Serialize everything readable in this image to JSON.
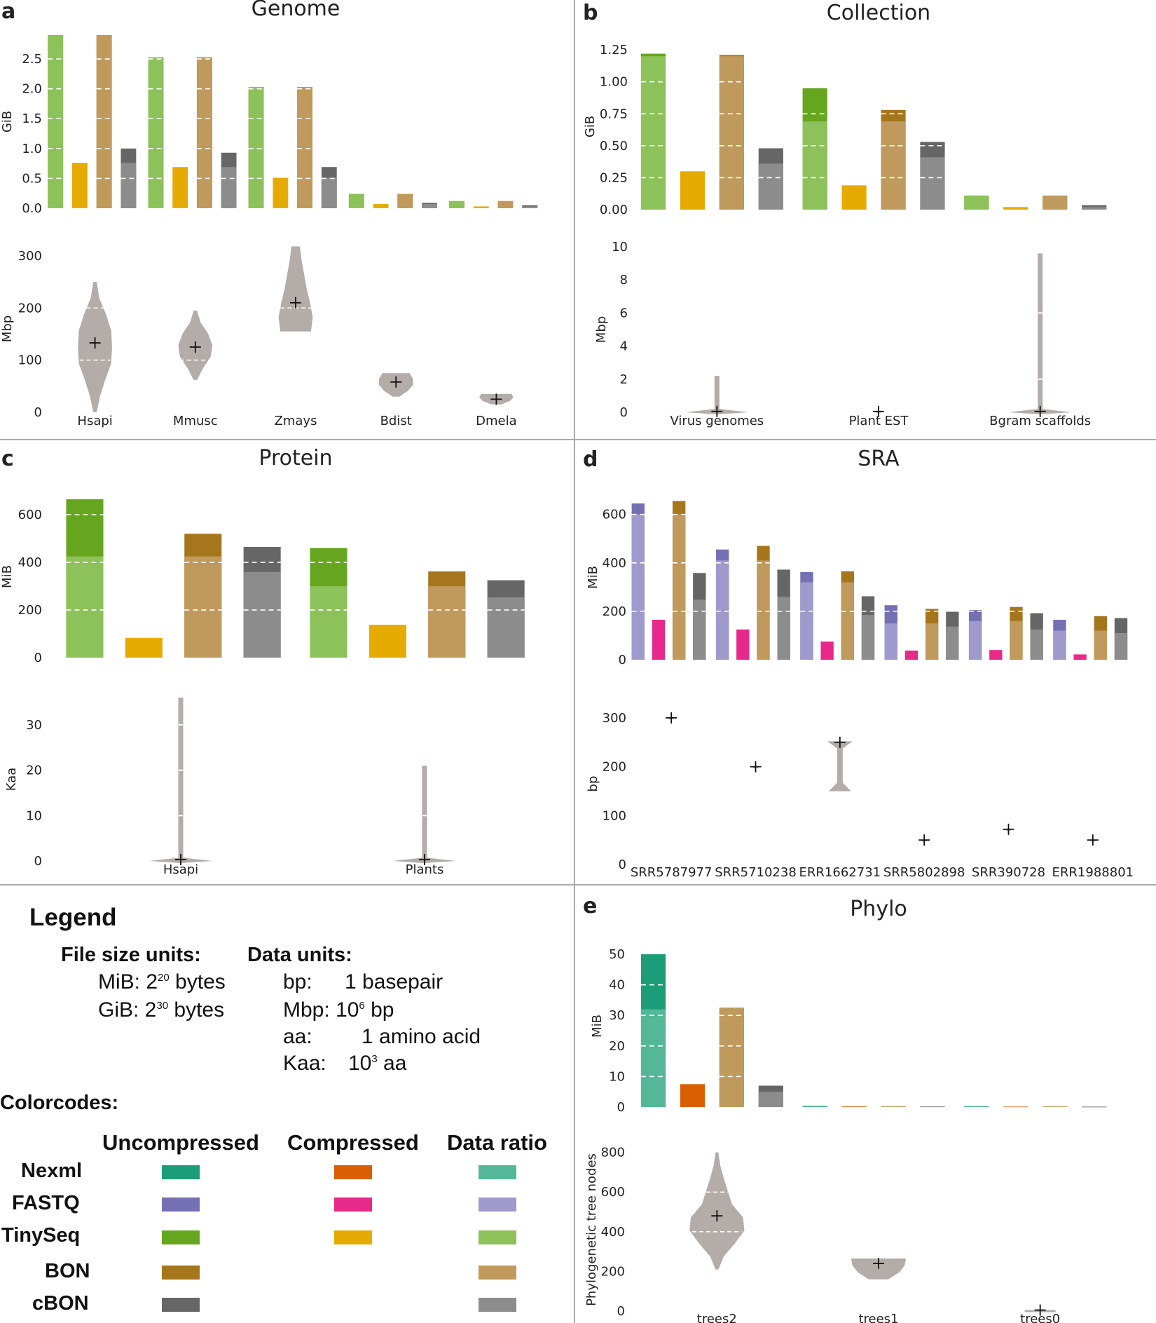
{
  "palette": {
    "uncompressed": {
      "Nexml": "#1b9e77",
      "FASTQ": "#7570b3",
      "TinySeq": "#66a61e",
      "BON": "#a6761d",
      "cBON": "#666666"
    },
    "compressed": {
      "Nexml": "#d95f02",
      "FASTQ": "#e7298a",
      "TinySeq": "#e6ab02"
    },
    "ratio": {
      "Nexml": "#54b898",
      "FASTQ": "#9e9acb",
      "TinySeq": "#8dc15a",
      "BON": "#bf9a5c",
      "cBON": "#8c8c8c"
    },
    "violin": "#b3aca9",
    "grid": "#ffffff",
    "divider": "#aaaaaa"
  },
  "chart_data": [
    {
      "panel": "a",
      "type": "bar",
      "title": "Genome",
      "categories": [
        "Hsapi",
        "Mmusc",
        "Zmays",
        "Bdist",
        "Dmela"
      ],
      "ylabel": "GiB",
      "ylim": [
        0,
        2.9
      ],
      "yticks": [
        0.0,
        0.5,
        1.0,
        1.5,
        2.0,
        2.5
      ],
      "yticklabels": [
        "0.0",
        "0.5",
        "1.0",
        "1.5",
        "2.0",
        "2.5"
      ],
      "bars": [
        {
          "format": "TinySeq",
          "kind": "uncompressed",
          "values": [
            2.9,
            2.53,
            2.03,
            0.24,
            0.12
          ],
          "ratio": [
            2.9,
            2.53,
            2.03,
            0.24,
            0.12
          ]
        },
        {
          "format": "TinySeq",
          "kind": "compressed",
          "values": [
            0.76,
            0.69,
            0.51,
            0.07,
            0.03
          ]
        },
        {
          "format": "BON",
          "kind": "uncompressed",
          "values": [
            2.9,
            2.53,
            2.03,
            0.24,
            0.12
          ],
          "ratio": [
            2.9,
            2.53,
            2.03,
            0.24,
            0.12
          ]
        },
        {
          "format": "cBON",
          "kind": "uncompressed",
          "values": [
            1.0,
            0.93,
            0.69,
            0.09,
            0.05
          ],
          "ratio": [
            0.76,
            0.69,
            0.51,
            0.07,
            0.03
          ]
        }
      ]
    },
    {
      "panel": "a",
      "type": "violin",
      "categories": [
        "Hsapi",
        "Mmusc",
        "Zmays",
        "Bdist",
        "Dmela"
      ],
      "ylabel": "Mbp",
      "ylim": [
        0,
        320
      ],
      "yticks": [
        0,
        100,
        200,
        300
      ],
      "yticklabels": [
        "0",
        "100",
        "200",
        "300"
      ],
      "violins": [
        {
          "min": 0,
          "max": 250,
          "mean": 133,
          "q1": 100,
          "q3": 200,
          "shape": [
            0.1,
            0.3,
            0.6,
            0.95,
            1.0,
            0.95,
            0.65,
            0.25,
            0.1
          ]
        },
        {
          "min": 62,
          "max": 195,
          "mean": 125,
          "q1": 100,
          "q3": null,
          "shape": [
            0.1,
            0.45,
            0.9,
            1.0,
            0.75,
            0.3,
            0.1
          ]
        },
        {
          "min": 155,
          "max": 318,
          "mean": 210,
          "q1": 200,
          "q3": null,
          "shape": [
            0.9,
            1.0,
            0.85,
            0.65,
            0.5,
            0.35,
            0.25
          ]
        },
        {
          "min": 30,
          "max": 75,
          "mean": 58,
          "q1": null,
          "q3": null,
          "shape": [
            0.2,
            0.7,
            1.0,
            1.0,
            0.8
          ]
        },
        {
          "min": 15,
          "max": 35,
          "mean": 25,
          "q1": null,
          "q3": null,
          "shape": [
            0.3,
            0.8,
            1.0,
            0.9
          ]
        }
      ]
    },
    {
      "panel": "b",
      "type": "bar",
      "title": "Collection",
      "categories": [
        "Virus genomes",
        "Plant EST",
        "Bgram scaffolds"
      ],
      "ylabel": "GiB",
      "ylim": [
        0,
        1.3
      ],
      "yticks": [
        0.0,
        0.25,
        0.5,
        0.75,
        1.0,
        1.25
      ],
      "yticklabels": [
        "0.00",
        "0.25",
        "0.50",
        "0.75",
        "1.00",
        "1.25"
      ],
      "bars": [
        {
          "format": "TinySeq",
          "kind": "uncompressed",
          "values": [
            1.22,
            0.95,
            0.11
          ],
          "ratio": [
            1.2,
            0.69,
            0.11
          ]
        },
        {
          "format": "TinySeq",
          "kind": "compressed",
          "values": [
            0.3,
            0.19,
            0.02
          ]
        },
        {
          "format": "BON",
          "kind": "uncompressed",
          "values": [
            1.21,
            0.78,
            0.11
          ],
          "ratio": [
            1.2,
            0.69,
            0.11
          ]
        },
        {
          "format": "cBON",
          "kind": "uncompressed",
          "values": [
            0.48,
            0.53,
            0.035
          ],
          "ratio": [
            0.36,
            0.41,
            0.02
          ]
        }
      ]
    },
    {
      "panel": "b",
      "type": "violin",
      "categories": [
        "Virus genomes",
        "Plant EST",
        "Bgram scaffolds"
      ],
      "ylabel": "Mbp",
      "ylim": [
        0,
        10
      ],
      "yticks": [
        0,
        2,
        4,
        6,
        8,
        10
      ],
      "yticklabels": [
        "0",
        "2",
        "4",
        "6",
        "8",
        "10"
      ],
      "violins": [
        {
          "min": 0,
          "max": 2.2,
          "mean": 0.05,
          "thin": true
        },
        {
          "min": 0,
          "max": 0.05,
          "mean": 0.05,
          "thin": true
        },
        {
          "min": 0,
          "max": 9.6,
          "mean": 0.05,
          "thin": true,
          "q1": 2,
          "q3": 6
        }
      ]
    },
    {
      "panel": "c",
      "type": "bar",
      "title": "Protein",
      "categories": [
        "Hsapi",
        "Plants"
      ],
      "ylabel": "MiB",
      "ylim": [
        0,
        680
      ],
      "yticks": [
        0,
        200,
        400,
        600
      ],
      "yticklabels": [
        "0",
        "200",
        "400",
        "600"
      ],
      "bars": [
        {
          "format": "TinySeq",
          "kind": "uncompressed",
          "values": [
            665,
            460
          ],
          "ratio": [
            425,
            300
          ]
        },
        {
          "format": "TinySeq",
          "kind": "compressed",
          "values": [
            83,
            138
          ]
        },
        {
          "format": "BON",
          "kind": "uncompressed",
          "values": [
            520,
            362
          ],
          "ratio": [
            425,
            300
          ]
        },
        {
          "format": "cBON",
          "kind": "uncompressed",
          "values": [
            465,
            325
          ],
          "ratio": [
            360,
            253
          ]
        }
      ]
    },
    {
      "panel": "c",
      "type": "violin",
      "categories": [
        "Hsapi",
        "Plants"
      ],
      "ylabel": "Kaa",
      "ylim": [
        0,
        36
      ],
      "yticks": [
        0,
        10,
        20,
        30
      ],
      "yticklabels": [
        "0",
        "10",
        "20",
        "30"
      ],
      "violins": [
        {
          "min": 0,
          "max": 36,
          "mean": 0.3,
          "thin": true,
          "q1": 10,
          "q3": 20,
          "extra": 30
        },
        {
          "min": 0,
          "max": 21,
          "mean": 0.3,
          "thin": true,
          "q1": 10
        }
      ]
    },
    {
      "panel": "d",
      "type": "bar",
      "title": "SRA",
      "categories": [
        "SRR5787977",
        "SRR5710238",
        "ERR1662731",
        "SRR5802898",
        "SRR390728",
        "ERR1988801"
      ],
      "ylabel": "MiB",
      "ylim": [
        0,
        680
      ],
      "yticks": [
        0,
        200,
        400,
        600
      ],
      "yticklabels": [
        "0",
        "200",
        "400",
        "600"
      ],
      "bars": [
        {
          "format": "FASTQ",
          "kind": "uncompressed",
          "values": [
            645,
            455,
            362,
            225,
            205,
            165
          ],
          "ratio": [
            600,
            410,
            320,
            150,
            160,
            120
          ]
        },
        {
          "format": "FASTQ",
          "kind": "compressed",
          "values": [
            165,
            125,
            75,
            38,
            40,
            22
          ]
        },
        {
          "format": "BON",
          "kind": "uncompressed",
          "values": [
            655,
            470,
            365,
            210,
            218,
            180
          ],
          "ratio": [
            600,
            410,
            320,
            150,
            160,
            120
          ]
        },
        {
          "format": "cBON",
          "kind": "uncompressed",
          "values": [
            358,
            372,
            262,
            198,
            192,
            172
          ],
          "ratio": [
            248,
            260,
            185,
            137,
            125,
            110
          ]
        }
      ]
    },
    {
      "panel": "d",
      "type": "violin",
      "categories": [
        "SRR5787977",
        "SRR5710238",
        "ERR1662731",
        "SRR5802898",
        "SRR390728",
        "ERR1988801"
      ],
      "ylabel": "bp",
      "ylim": [
        0,
        330
      ],
      "yticks": [
        0,
        100,
        200,
        300
      ],
      "yticklabels": [
        "0",
        "100",
        "200",
        "300"
      ],
      "violins": [
        {
          "min": 300,
          "max": 300,
          "mean": 300,
          "thin": true
        },
        {
          "min": 200,
          "max": 200,
          "mean": 200,
          "thin": true
        },
        {
          "min": 150,
          "max": 252,
          "mean": 250,
          "thin": true,
          "taper": true
        },
        {
          "min": 50,
          "max": 50,
          "mean": 50,
          "thin": true
        },
        {
          "min": 72,
          "max": 72,
          "mean": 72,
          "thin": true
        },
        {
          "min": 50,
          "max": 50,
          "mean": 50,
          "thin": true
        }
      ]
    },
    {
      "panel": "e",
      "type": "bar",
      "title": "Phylo",
      "categories": [
        "trees2",
        "trees1",
        "trees0"
      ],
      "ylabel": "MiB",
      "ylim": [
        0,
        53
      ],
      "yticks": [
        0,
        10,
        20,
        30,
        40,
        50
      ],
      "yticklabels": [
        "0",
        "10",
        "20",
        "30",
        "40",
        "50"
      ],
      "bars": [
        {
          "format": "Nexml",
          "kind": "uncompressed",
          "values": [
            50,
            0.4,
            0.3
          ],
          "ratio": [
            32,
            0.3,
            0.2
          ]
        },
        {
          "format": "Nexml",
          "kind": "compressed",
          "values": [
            7.5,
            0.2,
            0.15
          ]
        },
        {
          "format": "BON",
          "kind": "uncompressed",
          "values": [
            32.5,
            0.25,
            0.2
          ],
          "ratio": [
            32.5,
            0.25,
            0.2
          ]
        },
        {
          "format": "cBON",
          "kind": "uncompressed",
          "values": [
            7,
            0.2,
            0.15
          ],
          "ratio": [
            5,
            0.15,
            0.1
          ]
        }
      ]
    },
    {
      "panel": "e",
      "type": "violin",
      "categories": [
        "trees2",
        "trees1",
        "trees0"
      ],
      "ylabel": "Phylogenetic tree nodes",
      "ylim": [
        0,
        820
      ],
      "yticks": [
        0,
        200,
        400,
        600,
        800
      ],
      "yticklabels": [
        "0",
        "200",
        "400",
        "600",
        "800"
      ],
      "violins": [
        {
          "min": 210,
          "max": 800,
          "mean": 480,
          "q1": 400,
          "q3": 600,
          "shape": [
            0.05,
            0.25,
            0.65,
            1.0,
            0.95,
            0.55,
            0.4,
            0.25,
            0.12,
            0.05
          ]
        },
        {
          "min": 160,
          "max": 265,
          "mean": 240,
          "shape": [
            0.35,
            0.75,
            0.95,
            1.0
          ]
        },
        {
          "min": 0,
          "max": 15,
          "mean": 5,
          "thin": true,
          "flat": true
        }
      ]
    }
  ],
  "legend": {
    "title": "Legend",
    "file_size_heading": "File size units:",
    "data_units_heading": "Data units:",
    "mib": {
      "label": "MiB: 2",
      "exp": "20",
      "rest": " bytes"
    },
    "gib": {
      "label": "GiB: 2",
      "exp": "30",
      "rest": " bytes"
    },
    "bp": {
      "unit": "bp:",
      "value": "1  basepair"
    },
    "mbp": {
      "label": "Mbp: 10",
      "exp": "6",
      "rest": " bp"
    },
    "aa": {
      "unit": "aa:",
      "value": "1  amino acid"
    },
    "kaa": {
      "unit": "Kaa:",
      "value": "10",
      "exp": "3",
      "rest": " aa"
    },
    "colorcodes_heading": "Colorcodes:",
    "columns": [
      "Uncompressed",
      "Compressed",
      "Data ratio"
    ],
    "formats": [
      "Nexml",
      "FASTQ",
      "TinySeq",
      "BON",
      "cBON"
    ]
  },
  "panel_letters": [
    "a",
    "b",
    "c",
    "d",
    "e"
  ]
}
